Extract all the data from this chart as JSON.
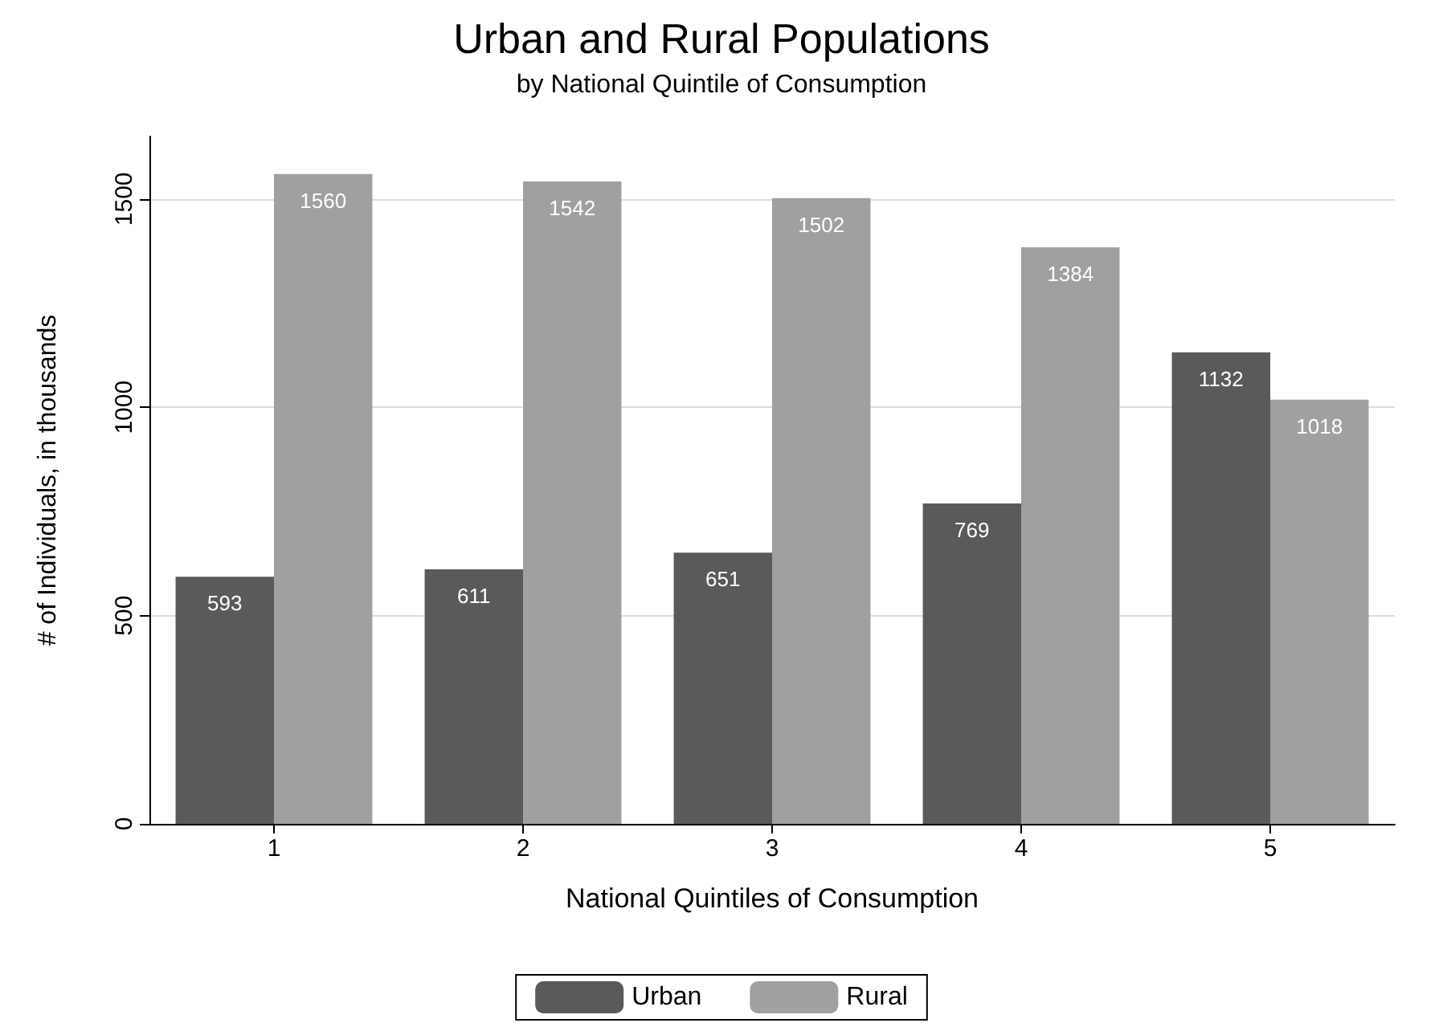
{
  "chart_data": {
    "type": "bar",
    "title": "Urban and Rural Populations",
    "subtitle": "by National Quintile of Consumption",
    "xlabel": "National Quintiles of Consumption",
    "ylabel": "# of Individuals, in thousands",
    "categories": [
      "1",
      "2",
      "3",
      "4",
      "5"
    ],
    "series": [
      {
        "name": "Urban",
        "color": "#5a5a5a",
        "values": [
          593,
          611,
          651,
          769,
          1132
        ]
      },
      {
        "name": "Rural",
        "color": "#a0a0a0",
        "values": [
          1560,
          1542,
          1502,
          1384,
          1018
        ]
      }
    ],
    "ylim": [
      0,
      1650
    ],
    "yticks": [
      0,
      500,
      1000,
      1500
    ],
    "grid": "y",
    "legend": "bottom",
    "data_labels": true
  }
}
